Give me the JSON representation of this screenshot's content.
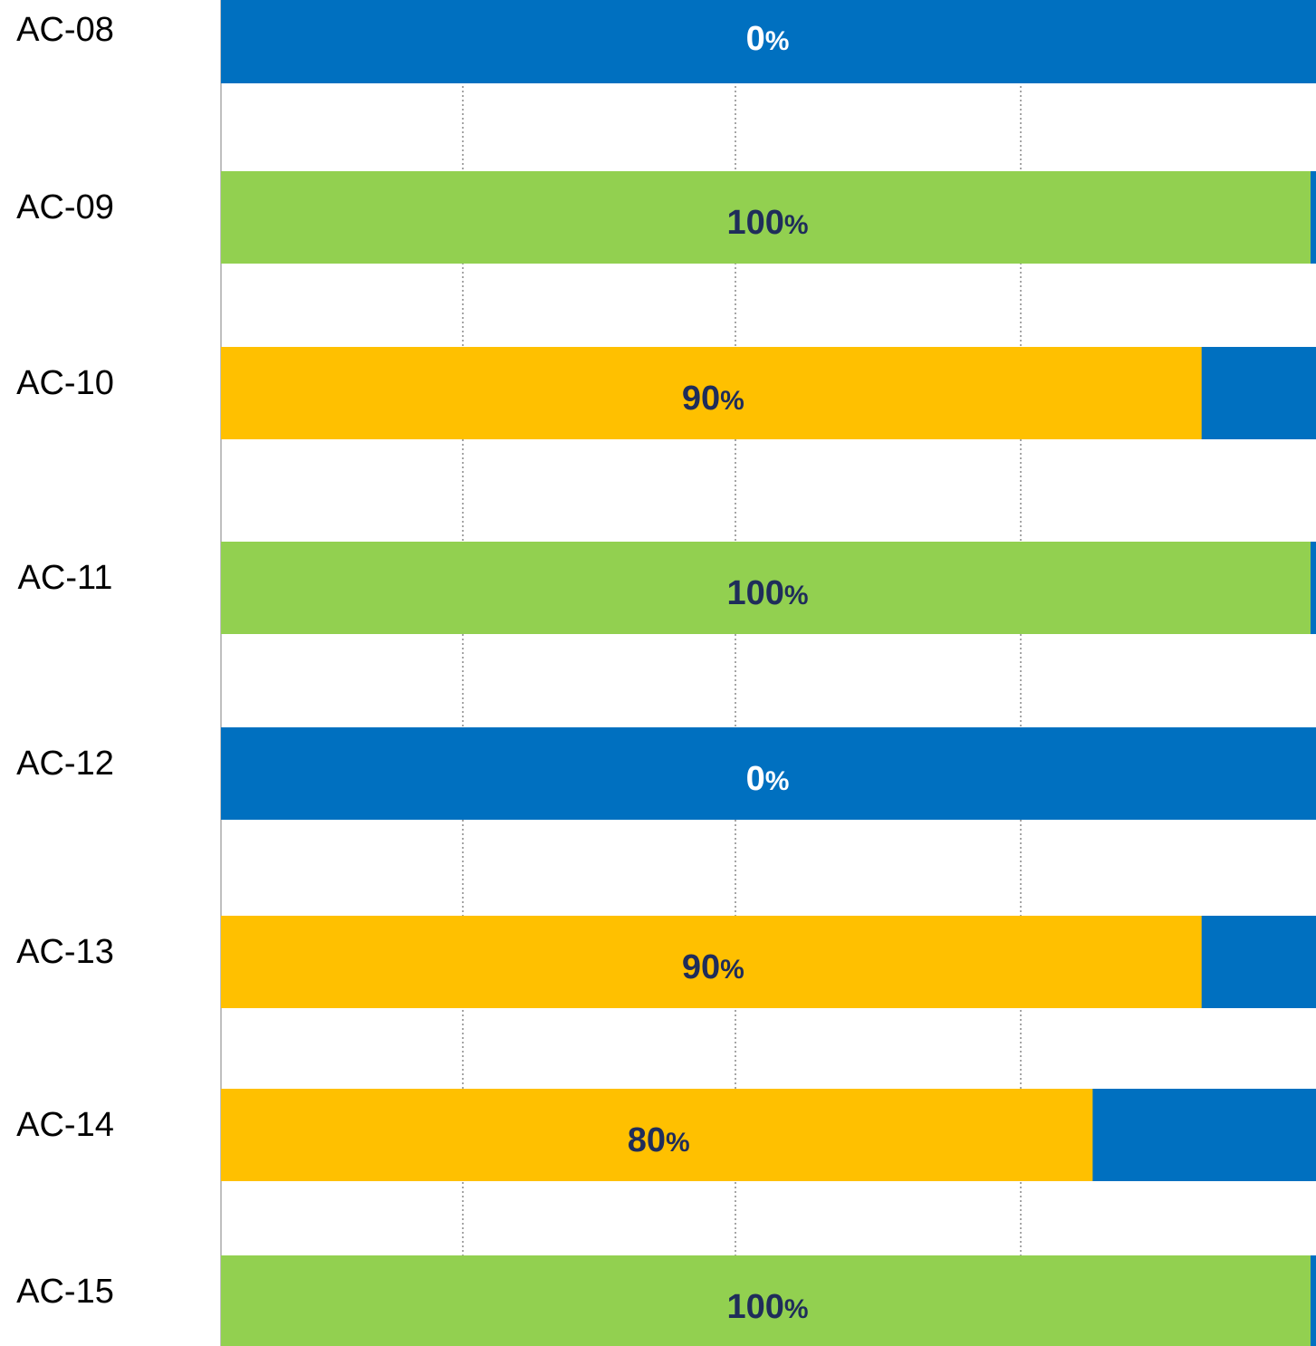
{
  "chart_data": {
    "type": "bar",
    "orientation": "horizontal",
    "stacked": true,
    "categories": [
      "AC-08",
      "AC-09",
      "AC-10",
      "AC-11",
      "AC-12",
      "AC-13",
      "AC-14",
      "AC-15"
    ],
    "values": [
      0,
      100,
      90,
      100,
      0,
      90,
      80,
      100
    ],
    "value_labels": [
      "0",
      "100",
      "90",
      "100",
      "0",
      "90",
      "80",
      "100"
    ],
    "value_suffix": "%",
    "xlim": [
      0,
      100
    ],
    "grid": "vertical dotted",
    "colors": {
      "complete": "#92D050",
      "partial": "#FFC000",
      "remainder": "#0070C0",
      "label_on_light": "#1F2D5A",
      "label_on_dark": "#FFFFFF"
    }
  }
}
